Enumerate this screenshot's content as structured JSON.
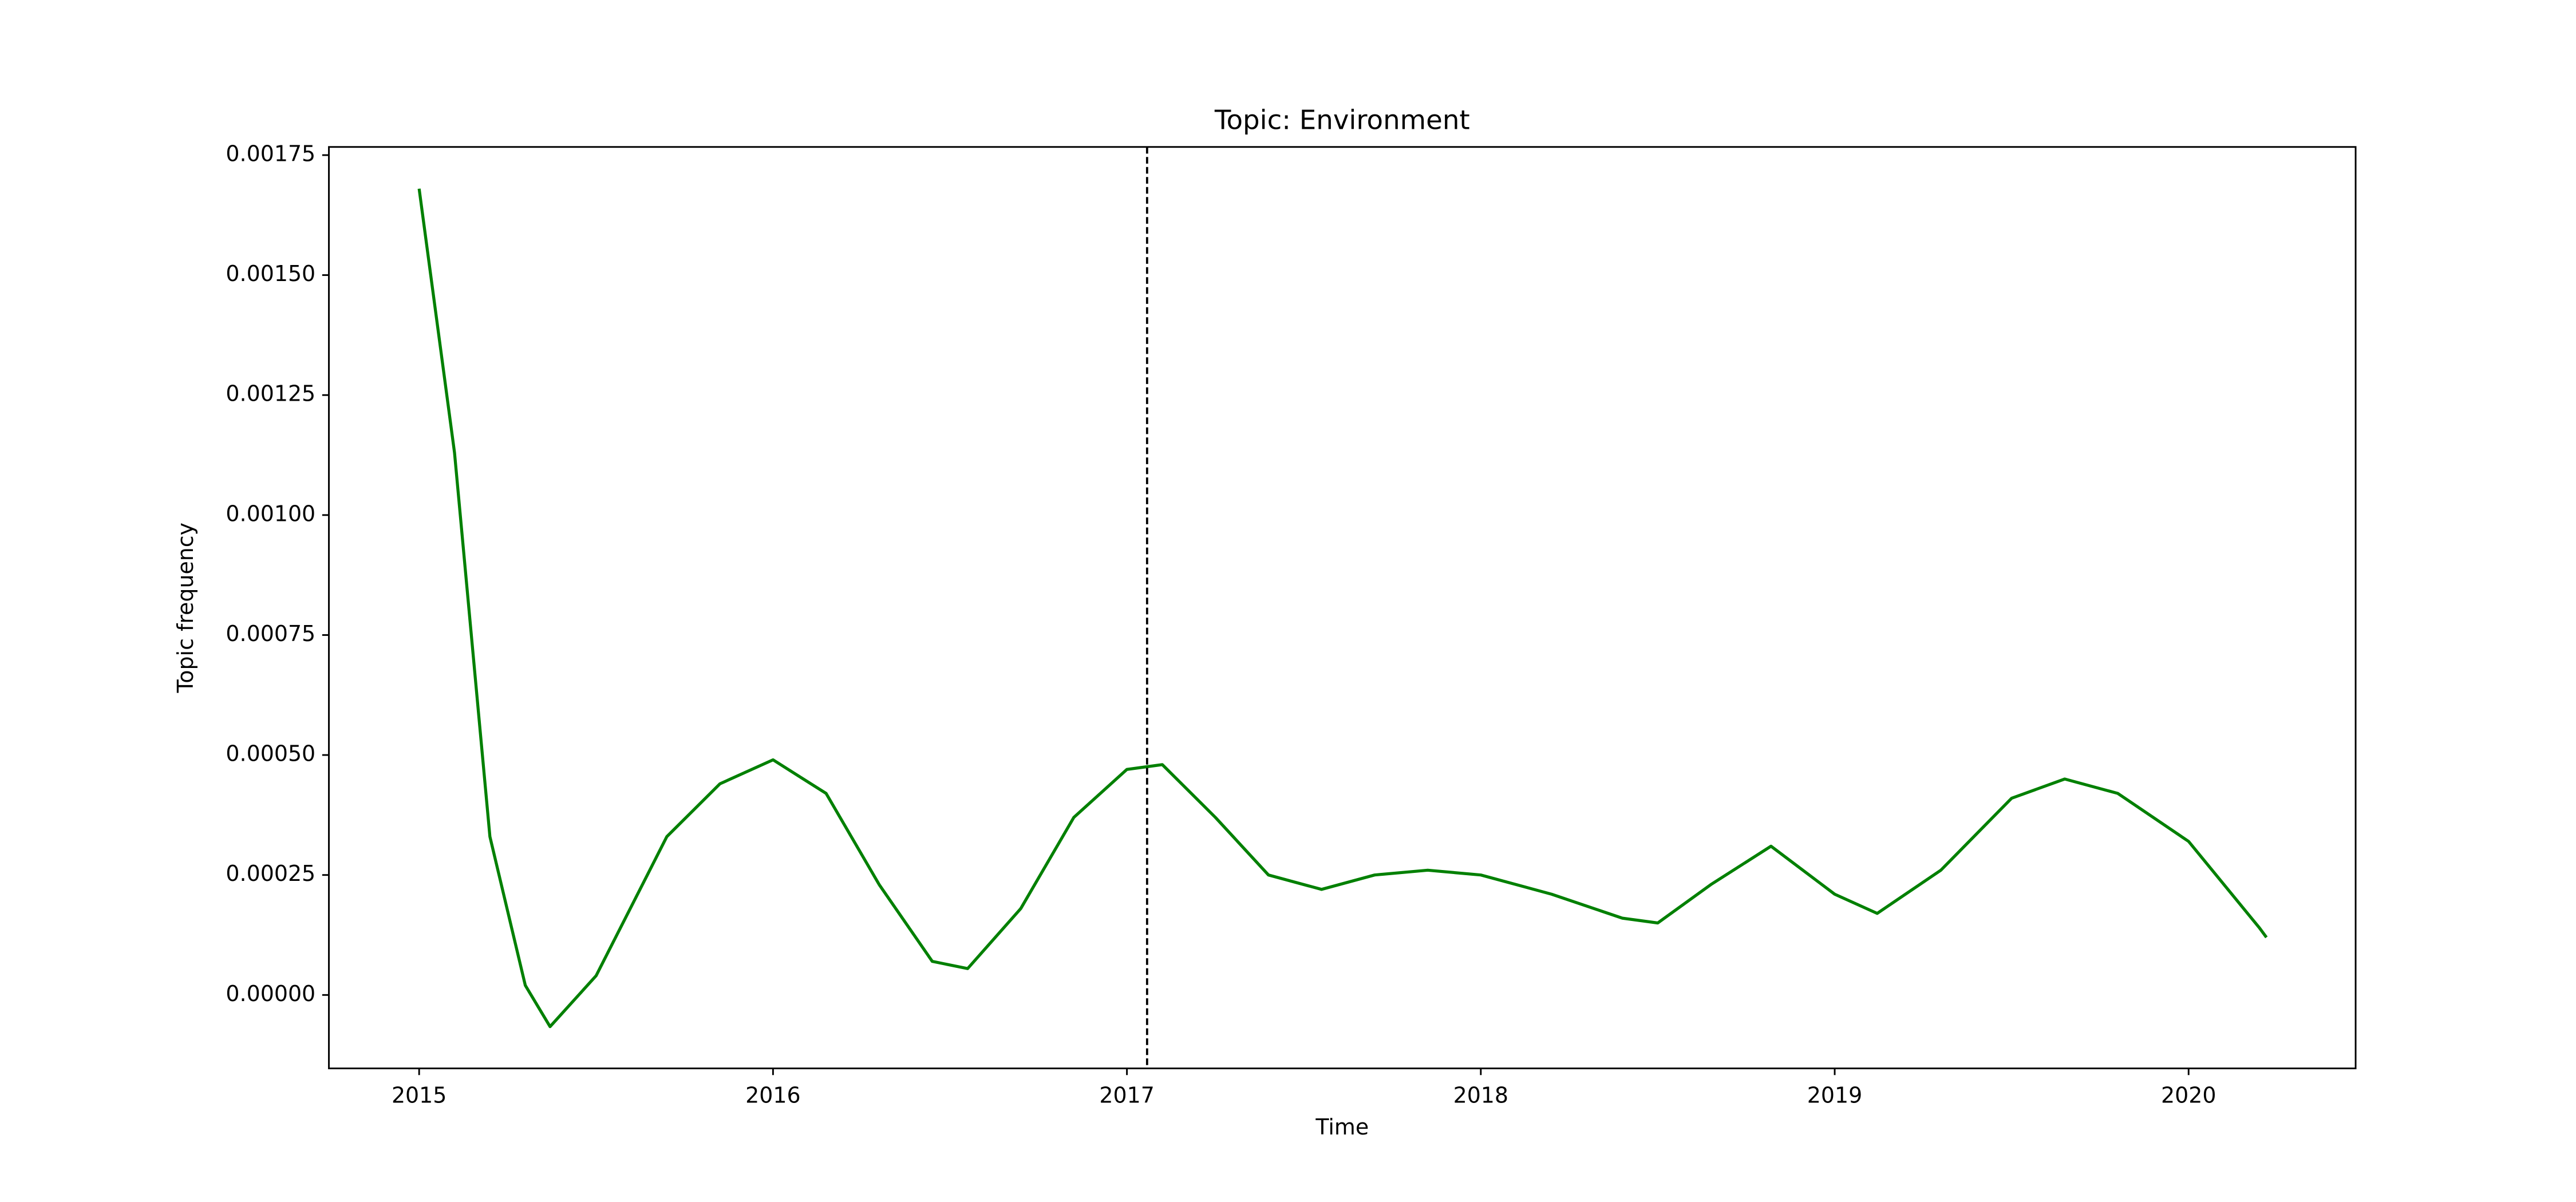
{
  "chart_data": {
    "type": "line",
    "title": "Topic: Environment",
    "xlabel": "Time",
    "ylabel": "Topic frequency",
    "xlim": [
      2014.745,
      2020.472
    ],
    "ylim": [
      -0.000153,
      0.001767
    ],
    "xticks": [
      2015,
      2016,
      2017,
      2018,
      2019,
      2020
    ],
    "yticks": [
      {
        "value": 0,
        "label": "0.00000"
      },
      {
        "value": 0.00025,
        "label": "0.00025"
      },
      {
        "value": 0.0005,
        "label": "0.00050"
      },
      {
        "value": 0.00075,
        "label": "0.00075"
      },
      {
        "value": 0.001,
        "label": "0.00100"
      },
      {
        "value": 0.00125,
        "label": "0.00125"
      },
      {
        "value": 0.0015,
        "label": "0.00150"
      },
      {
        "value": 0.00175,
        "label": "0.00175"
      }
    ],
    "grid": false,
    "vline": {
      "x": 2017.057,
      "color": "#000000",
      "dashed": true
    },
    "x": [
      2015.0,
      2015.1,
      2015.2,
      2015.3,
      2015.37,
      2015.5,
      2015.7,
      2015.85,
      2016.0,
      2016.15,
      2016.3,
      2016.45,
      2016.55,
      2016.7,
      2016.85,
      2017.0,
      2017.1,
      2017.25,
      2017.4,
      2017.55,
      2017.7,
      2017.85,
      2018.0,
      2018.2,
      2018.4,
      2018.5,
      2018.65,
      2018.82,
      2019.0,
      2019.12,
      2019.3,
      2019.5,
      2019.65,
      2019.8,
      2020.0,
      2020.2,
      2020.22
    ],
    "series": [
      {
        "name": "Environment",
        "color": "#008000",
        "values": [
          0.00168,
          0.00113,
          0.00033,
          2e-05,
          -6.6e-05,
          4e-05,
          0.00033,
          0.00044,
          0.00049,
          0.00042,
          0.00023,
          7e-05,
          5.5e-05,
          0.00018,
          0.00037,
          0.00047,
          0.00048,
          0.00037,
          0.00025,
          0.00022,
          0.00025,
          0.00026,
          0.00025,
          0.00021,
          0.00016,
          0.00015,
          0.00023,
          0.00031,
          0.00021,
          0.00017,
          0.00026,
          0.00041,
          0.00045,
          0.00042,
          0.00032,
          0.00014,
          0.00012
        ]
      }
    ]
  }
}
